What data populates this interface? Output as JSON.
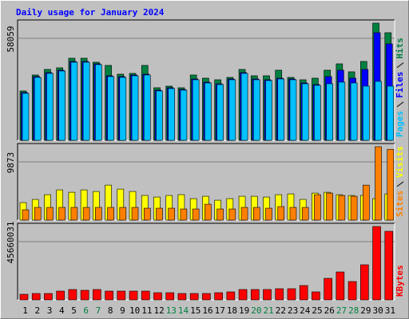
{
  "chart_data": {
    "type": "bar",
    "title": "Daily usage for January 2024",
    "categories": [
      "1",
      "2",
      "3",
      "4",
      "5",
      "6",
      "7",
      "8",
      "9",
      "10",
      "11",
      "12",
      "13",
      "14",
      "15",
      "16",
      "17",
      "18",
      "19",
      "20",
      "21",
      "22",
      "23",
      "24",
      "25",
      "26",
      "27",
      "28",
      "29",
      "30",
      "31"
    ],
    "highlight": [
      5,
      6,
      12,
      13,
      19,
      20,
      26,
      27
    ],
    "highlight_color": "#008040",
    "panels": [
      {
        "ylim": [
          0,
          59640
        ],
        "yticks": [
          58059
        ],
        "series": [
          {
            "name": "Hits",
            "color": "#008040",
            "values": [
              24490,
              32390,
              35150,
              35950,
              40690,
              40690,
              38710,
              37130,
              32785,
              33180,
              37130,
              26070,
              26860,
              26070,
              32390,
              30810,
              30020,
              31200,
              35150,
              32000,
              32000,
              34760,
              31200,
              30020,
              30810,
              34760,
              37920,
              33970,
              39105,
              58059,
              53325
            ]
          },
          {
            "name": "Files",
            "color": "#0000ff",
            "values": [
              23700,
              31600,
              33580,
              34760,
              39100,
              39100,
              37920,
              32000,
              31600,
              32390,
              32780,
              24880,
              26070,
              25280,
              30410,
              28830,
              28040,
              30410,
              33570,
              30410,
              30020,
              30810,
              30410,
              28440,
              27650,
              31600,
              34760,
              30810,
              35150,
              53325,
              47795
            ]
          },
          {
            "name": "Pages",
            "color": "#00c0ff",
            "values": [
              23300,
              31200,
              33180,
              34360,
              38710,
              38710,
              37525,
              31600,
              31200,
              32000,
              32390,
              24490,
              25675,
              24885,
              30020,
              28440,
              27650,
              30020,
              33180,
              30020,
              29625,
              30415,
              30020,
              28045,
              27255,
              28045,
              28835,
              28440,
              26860,
              29230,
              26860
            ]
          }
        ]
      },
      {
        "ylim": [
          0,
          10300
        ],
        "yticks": [
          9873
        ],
        "series": [
          {
            "name": "Visits",
            "color": "#ffff00",
            "values": [
              2354,
              2782,
              3424,
              4066,
              3745,
              4066,
              3852,
              4708,
              4173,
              3852,
              3317,
              3103,
              3317,
              3424,
              2889,
              3210,
              2675,
              2889,
              3210,
              3210,
              3103,
              3424,
              3531,
              2782,
              3638,
              3745,
              3424,
              3317,
              3317,
              2889,
              3531
            ]
          },
          {
            "name": "Sites",
            "color": "#ff8000",
            "values": [
              1391,
              1712,
              1712,
              1712,
              1712,
              1712,
              1712,
              1712,
              1712,
              1712,
              1605,
              1605,
              1605,
              1498,
              1498,
              2140,
              1498,
              1498,
              1712,
              1712,
              1605,
              1819,
              1712,
              1712,
              3424,
              3638,
              3317,
              3210,
              4708,
              9873,
              9523
            ]
          }
        ]
      },
      {
        "ylim": [
          0,
          47645000
        ],
        "yticks": [
          45660031
        ],
        "series": [
          {
            "name": "KBytes",
            "color": "#ff0000",
            "values": [
              3474100,
              3970400,
              3970400,
              5459300,
              6451900,
              5955600,
              6451900,
              5459300,
              5459300,
              5459300,
              5459300,
              4466700,
              4466700,
              3970400,
              3970400,
              3970400,
              4466700,
              4963000,
              6451900,
              6451900,
              6451900,
              6948200,
              6948200,
              8933400,
              4963000,
              13400100,
              17370500,
              11414900,
              21837200,
              45660031,
              42681800
            ]
          }
        ]
      }
    ]
  }
}
